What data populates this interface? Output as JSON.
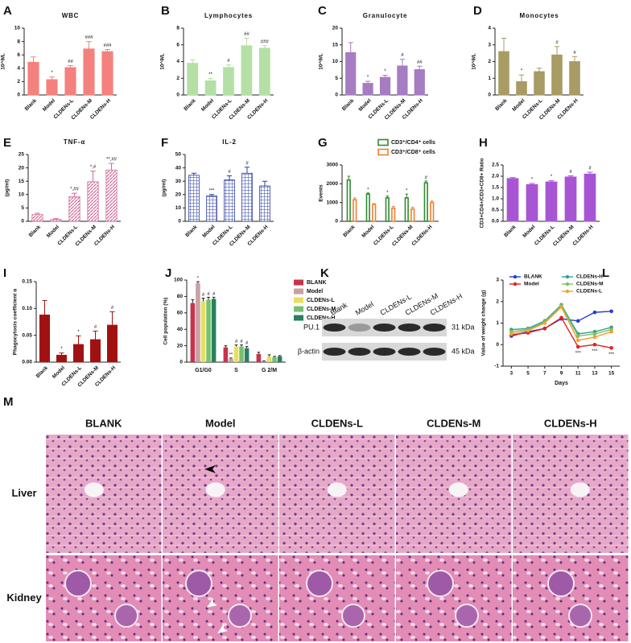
{
  "chart_data": [
    {
      "type": "bar",
      "panel": "A",
      "title": "WBC",
      "ylabel": "10^9/L",
      "categories": [
        "Blank",
        "Model",
        "CLDENs-L",
        "CLDENs-M",
        "CLDENs-H"
      ],
      "values": [
        4.9,
        2.3,
        4.1,
        6.9,
        6.5
      ],
      "errors": [
        0.8,
        0.4,
        0.3,
        1.1,
        0.3
      ],
      "annotations": [
        null,
        "*",
        "##",
        "###",
        "###"
      ],
      "color": "#f4817d",
      "ylim": [
        0,
        10
      ],
      "yticks": [
        0,
        2,
        4,
        6,
        8,
        10
      ]
    },
    {
      "type": "bar",
      "panel": "B",
      "title": "Lymphocytes",
      "ylabel": "10^9/L",
      "categories": [
        "Blank",
        "Model",
        "CLDENs-L",
        "CLDENs-M",
        "CLDENs-H"
      ],
      "values": [
        3.8,
        1.7,
        3.3,
        5.9,
        5.6
      ],
      "errors": [
        0.4,
        0.3,
        0.3,
        0.9,
        0.3
      ],
      "annotations": [
        null,
        "**",
        "#",
        "##",
        "###"
      ],
      "color": "#b4e0a5",
      "ylim": [
        0,
        8
      ],
      "yticks": [
        0,
        2,
        4,
        6,
        8
      ]
    },
    {
      "type": "bar",
      "panel": "C",
      "title": "Granulocyte",
      "ylabel": "10^9/L",
      "categories": [
        "Blank",
        "Model",
        "CLDENs-L",
        "CLDENs-M",
        "CLDENs-H"
      ],
      "values": [
        12.7,
        3.5,
        5.3,
        8.7,
        7.6
      ],
      "errors": [
        3,
        0.6,
        0.6,
        2,
        1
      ],
      "annotations": [
        null,
        "*",
        "*",
        "#",
        "##"
      ],
      "color": "#a67cc2",
      "ylim": [
        0,
        20
      ],
      "yticks": [
        0,
        5,
        10,
        15,
        20
      ]
    },
    {
      "type": "bar",
      "panel": "D",
      "title": "Monocytes",
      "ylabel": "10^9/L",
      "categories": [
        "Blank",
        "Model",
        "CLDENs-L",
        "CLDENs-M",
        "CLDENs-H"
      ],
      "values": [
        2.6,
        0.8,
        1.4,
        2.4,
        2.0
      ],
      "errors": [
        0.8,
        0.4,
        0.2,
        0.5,
        0.3
      ],
      "annotations": [
        null,
        "*",
        null,
        "#",
        "#"
      ],
      "color": "#a89b63",
      "ylim": [
        0,
        4
      ],
      "yticks": [
        0,
        1,
        2,
        3,
        4
      ]
    },
    {
      "type": "bar",
      "panel": "E",
      "title": "TNF-α",
      "ylabel": "(pg/ml)",
      "categories": [
        "Blank",
        "Model",
        "CLDENs-L",
        "CLDENs-M",
        "CLDENs-H"
      ],
      "values": [
        2.5,
        0.7,
        9.2,
        14.8,
        19.2
      ],
      "errors": [
        0.5,
        0.3,
        1.3,
        4,
        2.5
      ],
      "annotations": [
        null,
        null,
        "*,##",
        "*,#",
        "**,##"
      ],
      "color": "#d46a9a",
      "pattern": "diagonal",
      "ylim": [
        0,
        25
      ],
      "yticks": [
        0,
        5,
        10,
        15,
        20,
        25
      ]
    },
    {
      "type": "bar",
      "panel": "F",
      "title": "IL-2",
      "ylabel": "(pg/ml)",
      "categories": [
        "Blank",
        "Model",
        "CLDENs-L",
        "CLDENs-M",
        "CLDENs-H"
      ],
      "values": [
        34.5,
        19,
        31,
        36,
        26.5
      ],
      "errors": [
        1.5,
        1,
        3,
        4.5,
        3.5
      ],
      "annotations": [
        null,
        "***",
        "#",
        "#",
        null
      ],
      "color": "#2e3fa0",
      "pattern": "grid",
      "ylim": [
        0,
        50
      ],
      "yticks": [
        0,
        10,
        20,
        30,
        40,
        50
      ]
    },
    {
      "type": "grouped_bar",
      "panel": "G",
      "ylabel": "Events",
      "style": "outline",
      "categories": [
        "Blank",
        "Model",
        "CLDENs-L",
        "CLDENs-M",
        "CLDENs-H"
      ],
      "series": [
        {
          "name": "CD3⁺/CD4⁺ cells",
          "color": "#2e8b2e",
          "values": [
            2200,
            1450,
            1250,
            1250,
            2050
          ],
          "errors": [
            200,
            60,
            100,
            200,
            100
          ],
          "annotations": [
            null,
            "*",
            "*",
            "*",
            "#"
          ]
        },
        {
          "name": "CD3⁺/CD8⁺ cells",
          "color": "#f08030",
          "values": [
            1150,
            900,
            700,
            650,
            1000
          ],
          "errors": [
            100,
            40,
            100,
            100,
            80
          ]
        }
      ],
      "ylim": [
        0,
        3000
      ],
      "yticks": [
        0,
        1000,
        2000,
        3000
      ]
    },
    {
      "type": "bar",
      "panel": "H",
      "ylabel": "CD3+CD4+/CD3+CD8+ Ratio",
      "categories": [
        "Blank",
        "Model",
        "CLDENs-L",
        "CLDENs-M",
        "CLDENs-H"
      ],
      "values": [
        1.9,
        1.63,
        1.75,
        1.97,
        2.1
      ],
      "errors": [
        0.04,
        0.05,
        0.05,
        0.05,
        0.08
      ],
      "annotations": [
        null,
        "*",
        "*",
        "#",
        "#"
      ],
      "color": "#a855d4",
      "ylim": [
        0,
        2.5
      ],
      "yticks": [
        {
          "value": 0,
          "label": "0.0"
        },
        0.5,
        {
          "value": 1,
          "label": "1.0"
        },
        1.5,
        {
          "value": 2,
          "label": "2.0"
        },
        2.5
      ]
    },
    {
      "type": "bar",
      "panel": "I",
      "ylabel": "Phagocytosis coefficient α",
      "categories": [
        "Blank",
        "Model",
        "CLDENs-L",
        "CLDENs-M",
        "CLDENs-H"
      ],
      "values": [
        0.088,
        0.013,
        0.033,
        0.042,
        0.069
      ],
      "errors": [
        0.027,
        0.004,
        0.016,
        0.016,
        0.025
      ],
      "annotations": [
        null,
        "*",
        "*",
        "#",
        "#"
      ],
      "color": "#a01212",
      "ylim": [
        0,
        0.15
      ],
      "yticks": [
        {
          "value": 0,
          "label": "0.00"
        },
        {
          "value": 0.05,
          "label": "0.05"
        },
        {
          "value": 0.1,
          "label": "0.10"
        },
        {
          "value": 0.15,
          "label": "0.15"
        }
      ]
    },
    {
      "type": "grouped_bar",
      "panel": "J",
      "ylabel": "Cell population (%)",
      "horizontal_labels": true,
      "categories": [
        "G1/G0",
        "S",
        "G 2/M"
      ],
      "series": [
        {
          "name": "BLANK",
          "color": "#c8324a",
          "values": [
            72,
            18,
            10
          ],
          "errors": [
            4,
            2,
            2
          ]
        },
        {
          "name": "Model",
          "color": "#c9a0a3",
          "values": [
            96,
            4,
            1
          ],
          "errors": [
            2,
            1,
            0.5
          ],
          "annotations": [
            "*",
            "**",
            null
          ]
        },
        {
          "name": "CLDENs-L",
          "color": "#e6e060",
          "values": [
            74,
            19,
            7
          ],
          "errors": [
            4,
            2,
            2
          ],
          "annotations": [
            "#",
            "#",
            null
          ]
        },
        {
          "name": "CLDENs-M",
          "color": "#78c070",
          "values": [
            76,
            19,
            6
          ],
          "errors": [
            3,
            2,
            1
          ],
          "annotations": [
            "#",
            "#",
            null
          ]
        },
        {
          "name": "CLDENs-H",
          "color": "#2a8060",
          "values": [
            77,
            17,
            7
          ],
          "errors": [
            2,
            2,
            1
          ],
          "annotations": [
            "#",
            "#",
            null
          ]
        }
      ],
      "ylim": [
        0,
        100
      ],
      "yticks": [
        0,
        20,
        40,
        60,
        80,
        100
      ]
    },
    {
      "type": "line",
      "panel": "L",
      "ylabel": "Value of weight change (g)",
      "xlabel": "Days",
      "x": [
        3,
        5,
        7,
        9,
        11,
        13,
        15
      ],
      "series": [
        {
          "name": "BLANK",
          "color": "#1f3fd0",
          "values": [
            0.4,
            0.6,
            0.75,
            1.2,
            1.1,
            1.5,
            1.55
          ]
        },
        {
          "name": "Model",
          "color": "#e02020",
          "values": [
            0.45,
            0.55,
            0.75,
            1.25,
            -0.1,
            0,
            -0.15
          ],
          "annotations": [
            null,
            null,
            null,
            null,
            "***",
            "***",
            "***"
          ]
        },
        {
          "name": "CLDENs-H",
          "color": "#30a090",
          "values": [
            0.7,
            0.75,
            1.1,
            1.85,
            0.5,
            0.6,
            0.8
          ]
        },
        {
          "name": "CLDENs-M",
          "color": "#80c060",
          "values": [
            0.6,
            0.7,
            1.05,
            1.8,
            0.4,
            0.5,
            0.7
          ]
        },
        {
          "name": "CLDENs-L",
          "color": "#f0a030",
          "values": [
            0.5,
            0.65,
            1.0,
            1.75,
            0.2,
            0.35,
            0.6
          ]
        }
      ],
      "xlim": [
        2,
        16
      ],
      "xticks": [
        3,
        5,
        7,
        9,
        11,
        13,
        15
      ],
      "ylim": [
        -1,
        3
      ],
      "yticks": [
        -1,
        0,
        1,
        2,
        3
      ]
    }
  ],
  "blot": {
    "panel": "K",
    "lanes": [
      "Blank",
      "Model",
      "CLDENs-L",
      "CLDENs-M",
      "CLDENs-H"
    ],
    "rows": [
      {
        "protein": "PU.1",
        "size": "31 kDa"
      },
      {
        "protein": "β-actin",
        "size": "45 kDa"
      }
    ]
  },
  "histology": {
    "panel": "M",
    "columns": [
      "BLANK",
      "Model",
      "CLDENs-L",
      "CLDENs-M",
      "CLDENs-H"
    ],
    "rows": [
      "Liver",
      "Kidney"
    ]
  }
}
